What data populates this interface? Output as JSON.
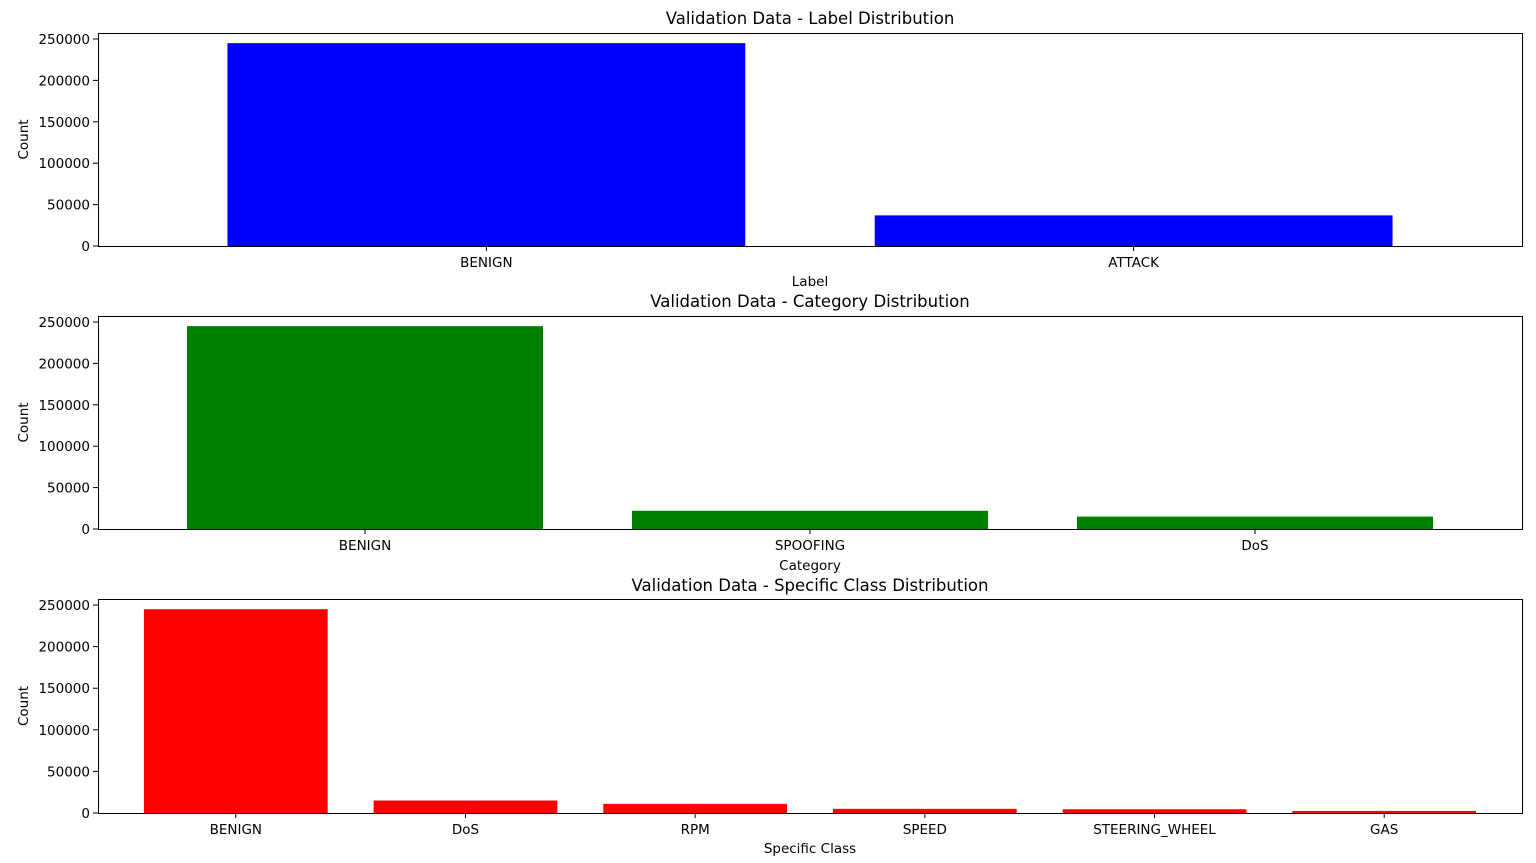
{
  "chart_data": [
    {
      "type": "bar",
      "title": "Validation Data - Label Distribution",
      "xlabel": "Label",
      "ylabel": "Count",
      "categories": [
        "BENIGN",
        "ATTACK"
      ],
      "values": [
        245000,
        37000
      ],
      "ylim": [
        0,
        257250
      ],
      "yticks": [
        0,
        50000,
        100000,
        150000,
        200000,
        250000
      ],
      "color": "#0000ff",
      "grid": false
    },
    {
      "type": "bar",
      "title": "Validation Data - Category Distribution",
      "xlabel": "Category",
      "ylabel": "Count",
      "categories": [
        "BENIGN",
        "SPOOFING",
        "DoS"
      ],
      "values": [
        245000,
        22000,
        15000
      ],
      "ylim": [
        0,
        257250
      ],
      "yticks": [
        0,
        50000,
        100000,
        150000,
        200000,
        250000
      ],
      "color": "#008000",
      "grid": false
    },
    {
      "type": "bar",
      "title": "Validation Data - Specific Class Distribution",
      "xlabel": "Specific Class",
      "ylabel": "Count",
      "categories": [
        "BENIGN",
        "DoS",
        "RPM",
        "SPEED",
        "STEERING_WHEEL",
        "GAS"
      ],
      "values": [
        245000,
        15000,
        11000,
        5000,
        4500,
        2500
      ],
      "ylim": [
        0,
        257250
      ],
      "yticks": [
        0,
        50000,
        100000,
        150000,
        200000,
        250000
      ],
      "color": "#ff0000",
      "grid": false
    }
  ]
}
